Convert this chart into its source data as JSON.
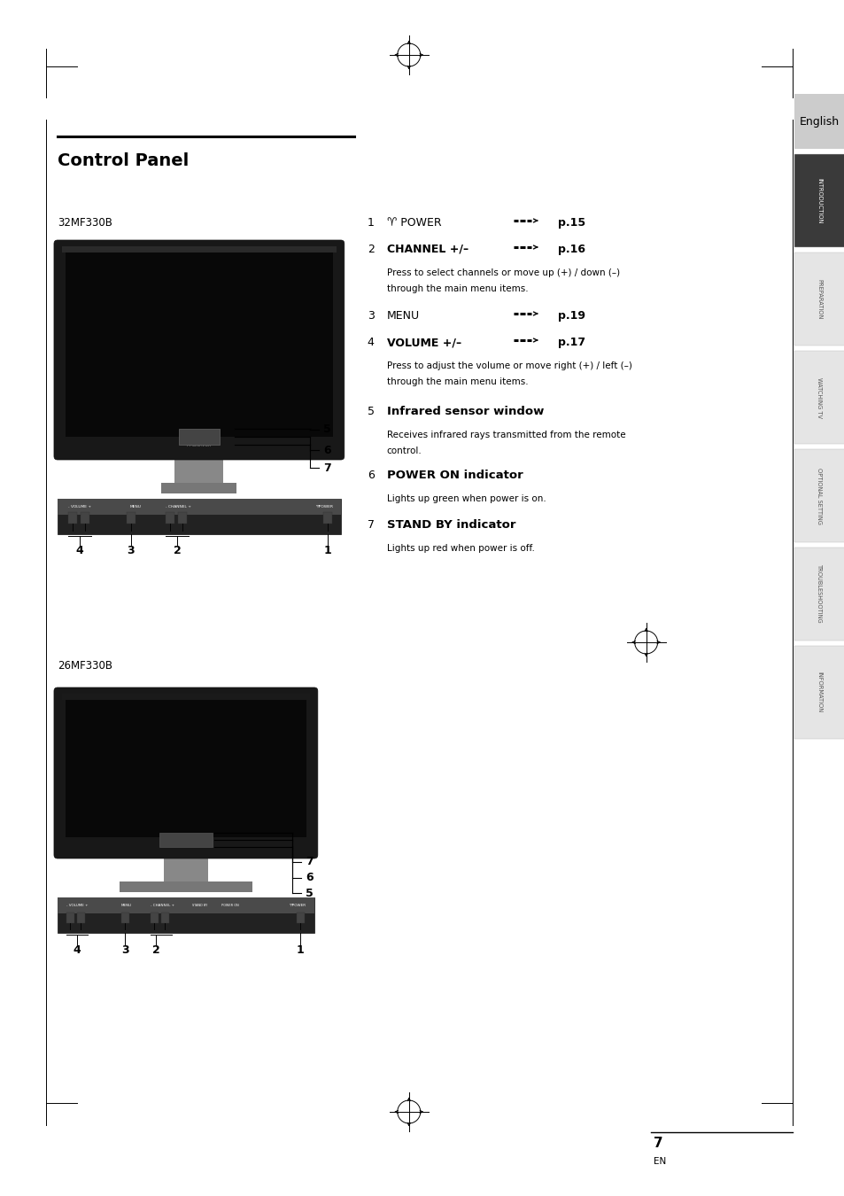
{
  "bg_color": "#ffffff",
  "page_width": 9.54,
  "page_height": 13.5,
  "title_text": "Control Panel",
  "model1_label": "32MF330B",
  "model2_label": "26MF330B",
  "english_tab_text": "English",
  "side_tabs": [
    "INTRODUCTION",
    "PREPARATION",
    "WATCHING TV",
    "OPTIONAL SETTING",
    "TROUBLESHOOTING",
    "INFORMATION"
  ],
  "footer_num": "7",
  "footer_en": "EN"
}
